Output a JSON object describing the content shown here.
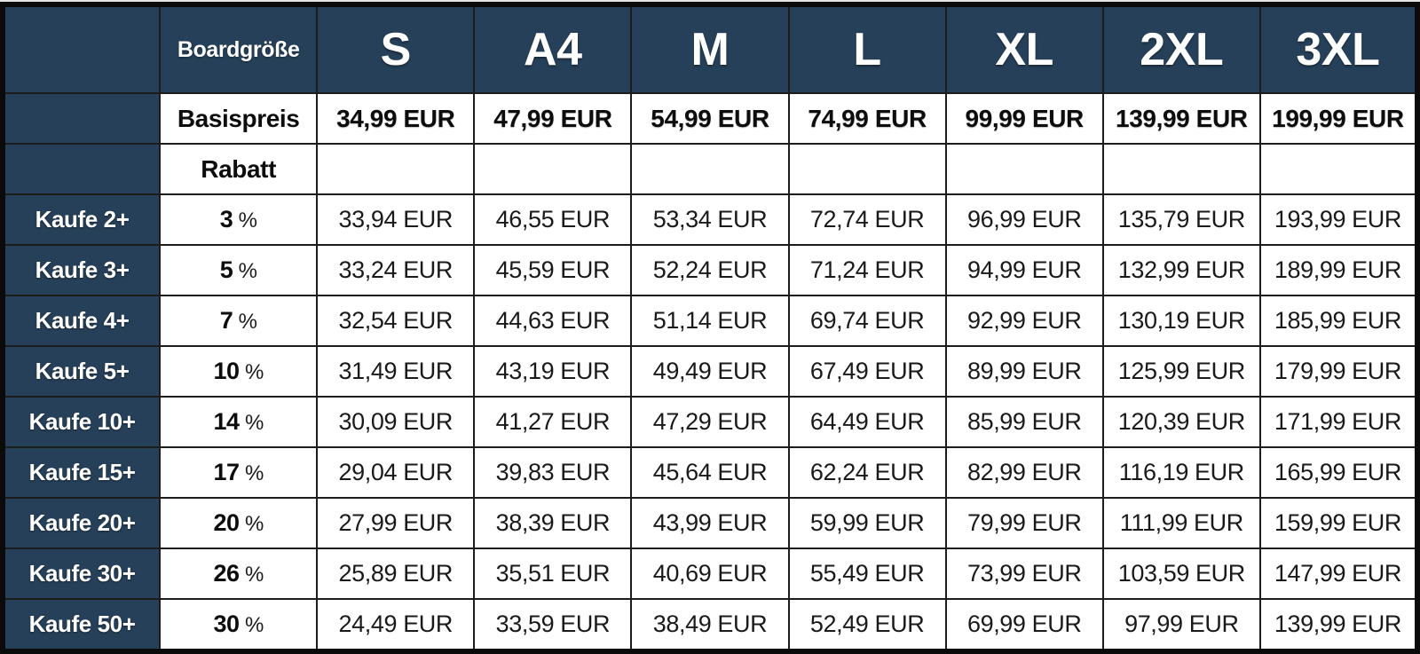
{
  "table": {
    "size_header_label": "Boardgröße",
    "base_price_label": "Basispreis",
    "discount_label": "Rabatt",
    "sizes": [
      "S",
      "A4",
      "M",
      "L",
      "XL",
      "2XL",
      "3XL"
    ],
    "base_prices": [
      "34,99 EUR",
      "47,99 EUR",
      "54,99 EUR",
      "74,99 EUR",
      "99,99 EUR",
      "139,99 EUR",
      "199,99 EUR"
    ],
    "tiers": [
      {
        "label": "Kaufe 2+",
        "discount": "3",
        "unit": "%",
        "prices": [
          "33,94 EUR",
          "46,55 EUR",
          "53,34 EUR",
          "72,74 EUR",
          "96,99 EUR",
          "135,79 EUR",
          "193,99 EUR"
        ]
      },
      {
        "label": "Kaufe 3+",
        "discount": "5",
        "unit": "%",
        "prices": [
          "33,24 EUR",
          "45,59 EUR",
          "52,24 EUR",
          "71,24 EUR",
          "94,99 EUR",
          "132,99 EUR",
          "189,99 EUR"
        ]
      },
      {
        "label": "Kaufe 4+",
        "discount": "7",
        "unit": "%",
        "prices": [
          "32,54 EUR",
          "44,63 EUR",
          "51,14 EUR",
          "69,74 EUR",
          "92,99 EUR",
          "130,19 EUR",
          "185,99 EUR"
        ]
      },
      {
        "label": "Kaufe 5+",
        "discount": "10",
        "unit": "%",
        "prices": [
          "31,49 EUR",
          "43,19 EUR",
          "49,49 EUR",
          "67,49 EUR",
          "89,99 EUR",
          "125,99 EUR",
          "179,99 EUR"
        ]
      },
      {
        "label": "Kaufe 10+",
        "discount": "14",
        "unit": "%",
        "prices": [
          "30,09 EUR",
          "41,27 EUR",
          "47,29 EUR",
          "64,49 EUR",
          "85,99 EUR",
          "120,39 EUR",
          "171,99 EUR"
        ]
      },
      {
        "label": "Kaufe 15+",
        "discount": "17",
        "unit": "%",
        "prices": [
          "29,04 EUR",
          "39,83 EUR",
          "45,64 EUR",
          "62,24 EUR",
          "82,99 EUR",
          "116,19 EUR",
          "165,99 EUR"
        ]
      },
      {
        "label": "Kaufe 20+",
        "discount": "20",
        "unit": "%",
        "prices": [
          "27,99 EUR",
          "38,39 EUR",
          "43,99 EUR",
          "59,99 EUR",
          "79,99 EUR",
          "111,99 EUR",
          "159,99 EUR"
        ]
      },
      {
        "label": "Kaufe 30+",
        "discount": "26",
        "unit": "%",
        "prices": [
          "25,89 EUR",
          "35,51 EUR",
          "40,69 EUR",
          "55,49 EUR",
          "73,99 EUR",
          "103,59 EUR",
          "147,99 EUR"
        ]
      },
      {
        "label": "Kaufe 50+",
        "discount": "30",
        "unit": "%",
        "prices": [
          "24,49 EUR",
          "33,59 EUR",
          "38,49 EUR",
          "52,49 EUR",
          "69,99 EUR",
          "97,99 EUR",
          "139,99 EUR"
        ]
      }
    ]
  },
  "colors": {
    "header_bg": "#264059",
    "header_text": "#ffffff",
    "cell_bg": "#ffffff",
    "grid_line": "#1c1c1c",
    "outer_border": "#0b0b0b",
    "body_text": "#1a1a1a"
  },
  "chart_data": {
    "type": "table",
    "title": "",
    "columns": [
      "",
      "Boardgröße",
      "S",
      "A4",
      "M",
      "L",
      "XL",
      "2XL",
      "3XL"
    ],
    "rows": [
      [
        "",
        "Basispreis",
        "34,99 EUR",
        "47,99 EUR",
        "54,99 EUR",
        "74,99 EUR",
        "99,99 EUR",
        "139,99 EUR",
        "199,99 EUR"
      ],
      [
        "",
        "Rabatt",
        "",
        "",
        "",
        "",
        "",
        "",
        ""
      ],
      [
        "Kaufe 2+",
        "3 %",
        "33,94 EUR",
        "46,55 EUR",
        "53,34 EUR",
        "72,74 EUR",
        "96,99 EUR",
        "135,79 EUR",
        "193,99 EUR"
      ],
      [
        "Kaufe 3+",
        "5 %",
        "33,24 EUR",
        "45,59 EUR",
        "52,24 EUR",
        "71,24 EUR",
        "94,99 EUR",
        "132,99 EUR",
        "189,99 EUR"
      ],
      [
        "Kaufe 4+",
        "7 %",
        "32,54 EUR",
        "44,63 EUR",
        "51,14 EUR",
        "69,74 EUR",
        "92,99 EUR",
        "130,19 EUR",
        "185,99 EUR"
      ],
      [
        "Kaufe 5+",
        "10 %",
        "31,49 EUR",
        "43,19 EUR",
        "49,49 EUR",
        "67,49 EUR",
        "89,99 EUR",
        "125,99 EUR",
        "179,99 EUR"
      ],
      [
        "Kaufe 10+",
        "14 %",
        "30,09 EUR",
        "41,27 EUR",
        "47,29 EUR",
        "64,49 EUR",
        "85,99 EUR",
        "120,39 EUR",
        "171,99 EUR"
      ],
      [
        "Kaufe 15+",
        "17 %",
        "29,04 EUR",
        "39,83 EUR",
        "45,64 EUR",
        "62,24 EUR",
        "82,99 EUR",
        "116,19 EUR",
        "165,99 EUR"
      ],
      [
        "Kaufe 20+",
        "20 %",
        "27,99 EUR",
        "38,39 EUR",
        "43,99 EUR",
        "59,99 EUR",
        "79,99 EUR",
        "111,99 EUR",
        "159,99 EUR"
      ],
      [
        "Kaufe 30+",
        "26 %",
        "25,89 EUR",
        "35,51 EUR",
        "40,69 EUR",
        "55,49 EUR",
        "73,99 EUR",
        "103,59 EUR",
        "147,99 EUR"
      ],
      [
        "Kaufe 50+",
        "30 %",
        "24,49 EUR",
        "33,59 EUR",
        "38,49 EUR",
        "52,49 EUR",
        "69,99 EUR",
        "97,99 EUR",
        "139,99 EUR"
      ]
    ]
  }
}
